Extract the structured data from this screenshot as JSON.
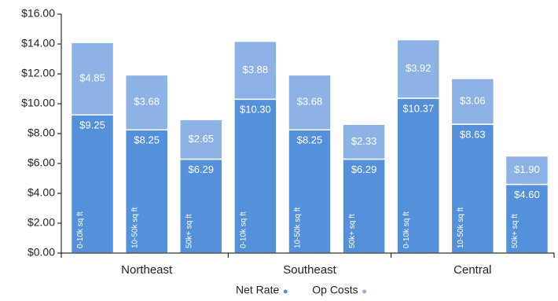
{
  "chart_data": {
    "type": "stacked-bar",
    "groups": [
      "Northeast",
      "Southeast",
      "Central"
    ],
    "categories": [
      "0-10k sq ft",
      "10-50k sq ft",
      "50k+ sq ft",
      "0-10k sq ft",
      "10-50k sq ft",
      "50k+ sq ft",
      "0-10k sq ft",
      "10-50k sq ft",
      "50k+ sq ft"
    ],
    "series": [
      {
        "name": "Net Rate",
        "color": "#5590da",
        "values": [
          9.25,
          8.25,
          6.29,
          10.3,
          8.25,
          6.29,
          10.37,
          8.63,
          4.6
        ],
        "value_labels": [
          "$9.25",
          "$8.25",
          "$6.29",
          "$10.30",
          "$8.25",
          "$6.29",
          "$10.37",
          "$8.63",
          "$4.60"
        ]
      },
      {
        "name": "Op Costs",
        "color": "#8db3e6",
        "values": [
          4.85,
          3.68,
          2.65,
          3.88,
          3.68,
          2.33,
          3.92,
          3.06,
          1.9
        ],
        "value_labels": [
          "$4.85",
          "$3.68",
          "$2.65",
          "$3.88",
          "$3.68",
          "$2.33",
          "$3.92",
          "$3.06",
          "$1.90"
        ]
      }
    ],
    "ylim": [
      0,
      16
    ],
    "yticks": [
      {
        "value": 0,
        "label": "$0.00"
      },
      {
        "value": 2,
        "label": "$2.00"
      },
      {
        "value": 4,
        "label": "$4.00"
      },
      {
        "value": 6,
        "label": "$6.00"
      },
      {
        "value": 8,
        "label": "$8.00"
      },
      {
        "value": 10,
        "label": "$10.00"
      },
      {
        "value": 12,
        "label": "$12.00"
      },
      {
        "value": 14,
        "label": "$14.00"
      },
      {
        "value": 16,
        "label": "$16.00"
      }
    ],
    "grid": false,
    "legend": "bottom"
  }
}
